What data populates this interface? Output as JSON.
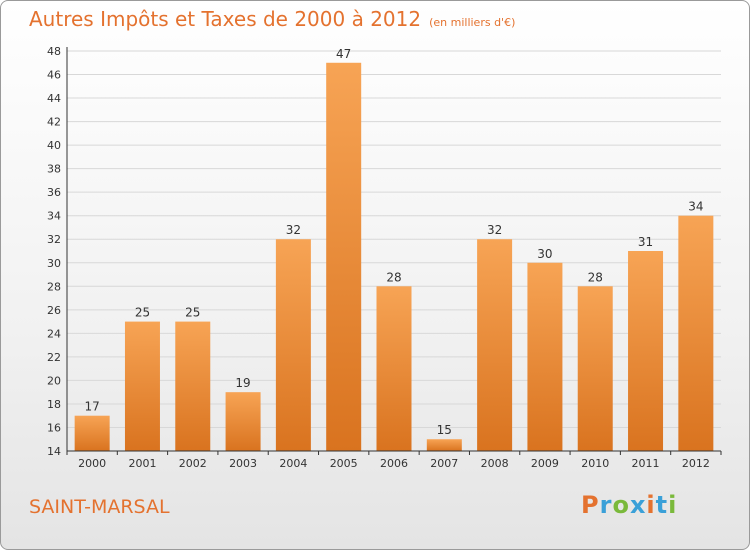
{
  "header": {
    "title": "Autres Impôts et Taxes de 2000 à 2012",
    "unit": "(en milliers d'€)"
  },
  "footer": {
    "commune": "SAINT-MARSAL",
    "logo_text": "Proxiti",
    "logo_colors": [
      "#e4722f",
      "#3aa0d8",
      "#7ab93b",
      "#3aa0d8",
      "#e4722f",
      "#3aa0d8",
      "#7ab93b"
    ]
  },
  "colors": {
    "bar_light": "#f7a455",
    "bar_dark": "#d9731f",
    "text": "#e4722f",
    "axis": "#333333",
    "grid": "#d8d8d8"
  },
  "chart_data": {
    "type": "bar",
    "categories": [
      "2000",
      "2001",
      "2002",
      "2003",
      "2004",
      "2005",
      "2006",
      "2007",
      "2008",
      "2009",
      "2010",
      "2011",
      "2012"
    ],
    "values": [
      17,
      25,
      25,
      19,
      32,
      47,
      28,
      15,
      32,
      30,
      28,
      31,
      34
    ],
    "data_labels": [
      "17",
      "25",
      "25",
      "19",
      "32",
      "47",
      "28",
      "15",
      "32",
      "30",
      "28",
      "31",
      "34"
    ],
    "ylim": [
      14,
      48
    ],
    "yticks": [
      14,
      16,
      18,
      20,
      22,
      24,
      26,
      28,
      30,
      32,
      34,
      36,
      38,
      40,
      42,
      44,
      46,
      48
    ],
    "grid": true
  }
}
